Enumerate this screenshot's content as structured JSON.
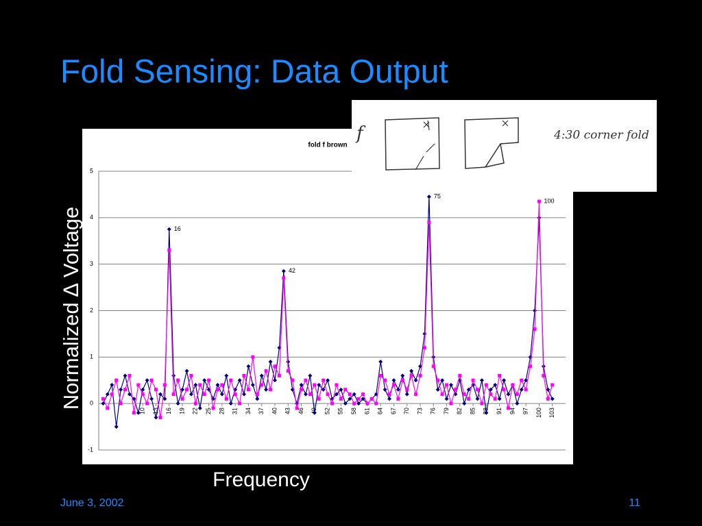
{
  "slide": {
    "title": "Fold Sensing: Data Output",
    "date": "June 3, 2002",
    "page": 11
  },
  "inset": {
    "letter": "f",
    "note": "4:30 corner fold"
  },
  "chart_data": {
    "type": "line",
    "title": "fold f brown",
    "y_label": "Normalized ∆ Voltage",
    "x_label": "Frequency",
    "x": [
      1,
      2,
      3,
      4,
      5,
      6,
      7,
      8,
      9,
      10,
      11,
      12,
      13,
      14,
      15,
      16,
      17,
      18,
      19,
      20,
      21,
      22,
      23,
      24,
      25,
      26,
      27,
      28,
      29,
      30,
      31,
      32,
      33,
      34,
      35,
      36,
      37,
      38,
      39,
      40,
      41,
      42,
      43,
      44,
      45,
      46,
      47,
      48,
      49,
      50,
      51,
      52,
      53,
      54,
      55,
      56,
      57,
      58,
      59,
      60,
      61,
      62,
      63,
      64,
      65,
      66,
      67,
      68,
      69,
      70,
      71,
      72,
      73,
      74,
      75,
      76,
      77,
      78,
      79,
      80,
      81,
      82,
      83,
      84,
      85,
      86,
      87,
      88,
      89,
      90,
      91,
      92,
      93,
      94,
      95,
      96,
      97,
      98,
      99,
      100,
      101,
      102,
      103
    ],
    "series": [
      {
        "color": "#000080",
        "values": [
          0.0,
          0.2,
          0.4,
          -0.5,
          0.3,
          0.6,
          0.2,
          0.1,
          -0.2,
          0.3,
          0.5,
          0.1,
          -0.3,
          0.2,
          0.1,
          3.75,
          0.6,
          0.0,
          0.3,
          0.7,
          0.2,
          0.4,
          -0.1,
          0.5,
          0.3,
          0.1,
          0.4,
          0.2,
          0.6,
          0.0,
          0.3,
          0.5,
          0.2,
          0.8,
          0.4,
          0.1,
          0.6,
          0.3,
          0.9,
          0.5,
          1.2,
          2.85,
          0.9,
          0.3,
          0.0,
          0.4,
          0.2,
          0.6,
          -0.2,
          0.4,
          0.3,
          0.5,
          0.1,
          0.2,
          0.3,
          0.0,
          0.1,
          0.2,
          0.0,
          0.1,
          0.0,
          0.1,
          0.2,
          0.9,
          0.3,
          0.1,
          0.5,
          0.3,
          0.6,
          0.2,
          0.7,
          0.5,
          0.8,
          1.5,
          4.45,
          1.0,
          0.3,
          0.5,
          0.1,
          0.4,
          0.2,
          0.5,
          0.0,
          0.3,
          0.4,
          0.1,
          0.5,
          -0.2,
          0.3,
          0.4,
          0.1,
          0.5,
          0.2,
          0.4,
          0.0,
          0.3,
          0.5,
          1.0,
          2.0,
          4.0,
          0.8,
          0.3,
          0.1
        ]
      },
      {
        "color": "#ff00ff",
        "values": [
          0.1,
          -0.1,
          0.2,
          0.5,
          0.0,
          0.3,
          0.6,
          -0.2,
          0.4,
          0.2,
          0.0,
          0.5,
          0.3,
          -0.3,
          0.4,
          3.3,
          0.2,
          0.5,
          0.1,
          0.3,
          0.6,
          0.0,
          0.4,
          0.2,
          0.5,
          -0.1,
          0.3,
          0.4,
          0.1,
          0.5,
          0.2,
          0.0,
          0.6,
          0.3,
          1.0,
          0.2,
          0.4,
          0.7,
          0.3,
          0.8,
          0.6,
          2.7,
          0.7,
          0.5,
          -0.1,
          0.3,
          0.5,
          0.2,
          0.4,
          0.1,
          0.5,
          0.2,
          0.0,
          0.4,
          0.1,
          0.3,
          0.2,
          0.0,
          0.1,
          0.2,
          0.0,
          0.1,
          0.0,
          0.6,
          0.5,
          0.2,
          0.4,
          0.1,
          0.5,
          0.3,
          0.6,
          0.2,
          0.6,
          1.2,
          3.9,
          0.8,
          0.5,
          0.2,
          0.4,
          0.0,
          0.3,
          0.6,
          0.2,
          0.1,
          0.5,
          0.3,
          0.0,
          0.4,
          0.2,
          0.1,
          0.6,
          0.3,
          -0.1,
          0.4,
          0.2,
          0.5,
          0.3,
          0.8,
          1.6,
          4.35,
          0.6,
          0.1,
          0.4
        ]
      }
    ],
    "annotations": [
      {
        "x": 16,
        "y": 3.75
      },
      {
        "x": 42,
        "y": 2.85
      },
      {
        "x": 75,
        "y": 4.45
      },
      {
        "x": 100,
        "y": 4.35
      }
    ],
    "xlim": [
      0,
      106
    ],
    "ylim": [
      -1,
      5
    ],
    "xticks": [
      10,
      13,
      16,
      19,
      22,
      25,
      28,
      31,
      34,
      37,
      40,
      43,
      46,
      49,
      52,
      55,
      58,
      61,
      64,
      67,
      70,
      73,
      76,
      79,
      82,
      85,
      88,
      91,
      94,
      97,
      100,
      103
    ],
    "yticks": [
      -1,
      0,
      1,
      2,
      3,
      4,
      5
    ],
    "grid": true
  }
}
